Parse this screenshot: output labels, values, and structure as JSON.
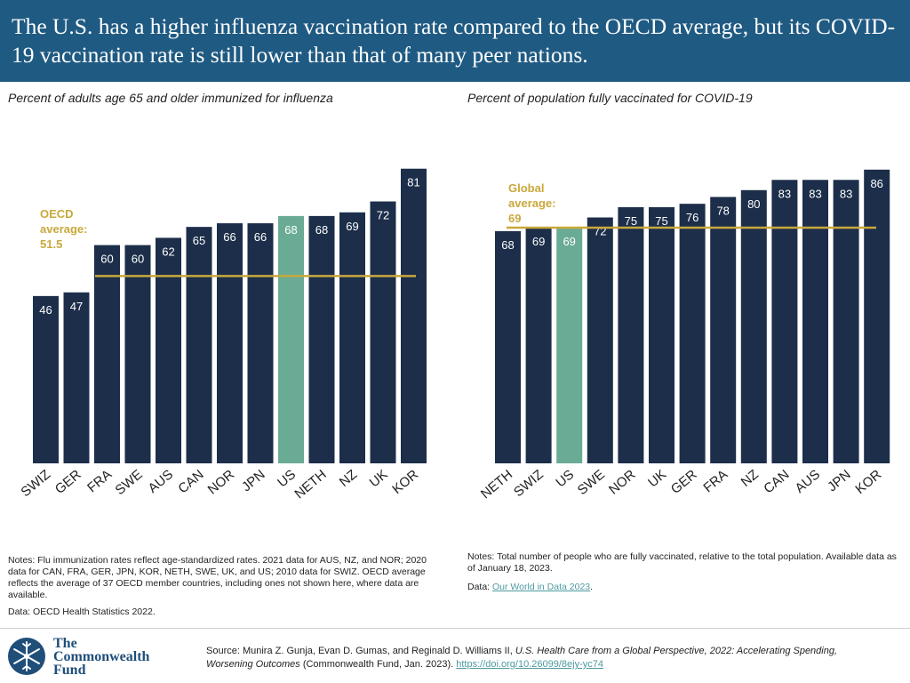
{
  "header": {
    "title": "The U.S. has a higher influenza vaccination rate compared to the OECD average, but its COVID-19 vaccination rate is still lower than that of many peer nations."
  },
  "colors": {
    "header_bg": "#1f5a82",
    "bar": "#1c2e4a",
    "highlight": "#6aab96",
    "average_line": "#c9a83c",
    "average_text": "#c9a83c",
    "link": "#4e9aa0"
  },
  "chart_data": [
    {
      "type": "bar",
      "title": "Percent of adults age 65 and older immunized for influenza",
      "categories": [
        "SWIZ",
        "GER",
        "FRA",
        "SWE",
        "AUS",
        "CAN",
        "NOR",
        "JPN",
        "US",
        "NETH",
        "NZ",
        "UK",
        "KOR"
      ],
      "values": [
        46,
        47,
        60,
        60,
        62,
        65,
        66,
        66,
        68,
        68,
        69,
        72,
        81
      ],
      "highlight": "US",
      "ylim": [
        0,
        100
      ],
      "xlabel": "",
      "ylabel": "",
      "average": {
        "value": 51.5,
        "label_lines": [
          "OECD",
          "average:",
          "51.5"
        ]
      }
    },
    {
      "type": "bar",
      "title": "Percent of population fully vaccinated for COVID-19",
      "categories": [
        "NETH",
        "SWIZ",
        "US",
        "SWE",
        "NOR",
        "UK",
        "GER",
        "FRA",
        "NZ",
        "CAN",
        "AUS",
        "JPN",
        "KOR"
      ],
      "values": [
        68,
        69,
        69,
        72,
        75,
        75,
        76,
        78,
        80,
        83,
        83,
        83,
        86
      ],
      "highlight": "US",
      "ylim": [
        0,
        100
      ],
      "xlabel": "",
      "ylabel": "",
      "average": {
        "value": 69,
        "label_lines": [
          "Global",
          "average:",
          "69"
        ]
      }
    }
  ],
  "notes_left": {
    "notes": "Notes: Flu immunization rates reflect age-standardized rates. 2021 data for AUS, NZ, and NOR; 2020 data for CAN, FRA, GER, JPN, KOR, NETH, SWE, UK, and US; 2010 data for SWIZ. OECD average reflects the average of 37 OECD member countries, including ones not shown here, where data are available.",
    "data": "Data: OECD Health Statistics 2022."
  },
  "notes_right": {
    "notes": "Notes: Total number of people who are fully vaccinated, relative to the total population. Available data as of January 18, 2023.",
    "data_prefix": "Data: ",
    "data_link": "Our World in Data 2023",
    "data_suffix": "."
  },
  "footer": {
    "logo_line1": "The",
    "logo_line2": "Commonwealth",
    "logo_line3": "Fund",
    "source_prefix": "Source: Munira Z. Gunja, Evan D. Gumas, and Reginald D. Williams II, ",
    "source_title": "U.S. Health Care from a Global Perspective, 2022: Accelerating Spending, Worsening Outcomes",
    "source_suffix": " (Commonwealth Fund, Jan. 2023). ",
    "source_link": "https://doi.org/10.26099/8ejy-yc74"
  }
}
